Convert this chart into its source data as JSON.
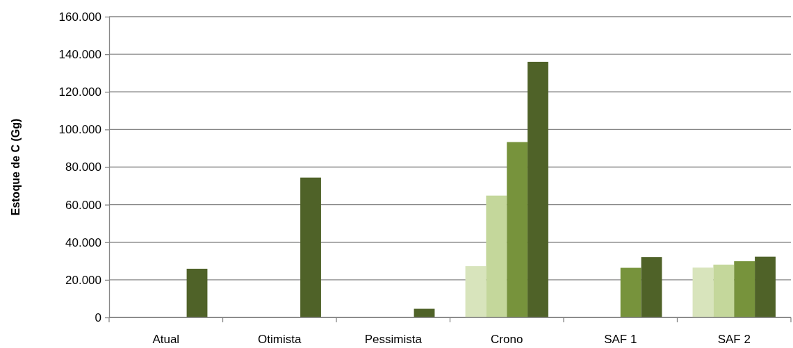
{
  "chart_data": {
    "type": "bar",
    "ylabel": "Estoque de C (Gg)",
    "categories": [
      "Atual",
      "Otimista",
      "Pessimista",
      "Crono",
      "SAF 1",
      "SAF 2"
    ],
    "series": [
      {
        "color": "#d8e4bc",
        "values": [
          null,
          null,
          null,
          27300,
          null,
          26500
        ]
      },
      {
        "color": "#c4d79b",
        "values": [
          null,
          null,
          null,
          64800,
          null,
          28100
        ]
      },
      {
        "color": "#77933c",
        "values": [
          null,
          null,
          null,
          93300,
          26400,
          29900
        ]
      },
      {
        "color": "#4f6228",
        "values": [
          25900,
          74400,
          4600,
          136000,
          32100,
          32300
        ]
      }
    ],
    "ylim": [
      0,
      160000
    ],
    "yticks": [
      {
        "value": 0,
        "label": "0"
      },
      {
        "value": 20000,
        "label": "20.000"
      },
      {
        "value": 40000,
        "label": "40.000"
      },
      {
        "value": 60000,
        "label": "60.000"
      },
      {
        "value": 80000,
        "label": "80.000"
      },
      {
        "value": 100000,
        "label": "100.000"
      },
      {
        "value": 120000,
        "label": "120.000"
      },
      {
        "value": 140000,
        "label": "140.000"
      },
      {
        "value": 160000,
        "label": "160.000"
      }
    ],
    "grid": "y"
  }
}
